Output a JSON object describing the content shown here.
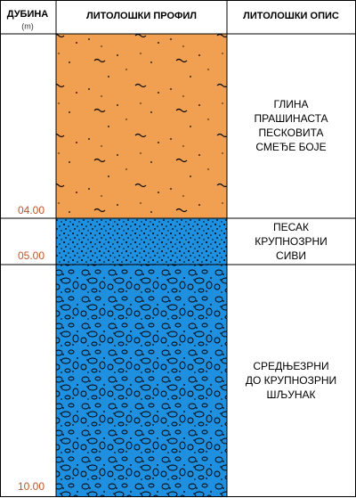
{
  "header": {
    "depth": "ДУБИНА",
    "unit": "(m)",
    "profile": "ЛИТОЛОШКИ ПРОФИЛ",
    "description": "ЛИТОЛОШКИ ОПИС"
  },
  "layers": [
    {
      "depth": "04.00",
      "description": [
        "ГЛИНА",
        "ПРАШИНАСТА",
        "ПЕСКОВИТА",
        "СМЕЂЕ БОЈЕ"
      ]
    },
    {
      "depth": "05.00",
      "description": [
        "ПЕСАК",
        "КРУПНОЗРНИ",
        "СИВИ"
      ]
    },
    {
      "depth": "10.00",
      "description": [
        "СРЕДЊЕЗРНИ",
        "ДО КРУПНОЗРНИ",
        "ШЉУНАК"
      ]
    }
  ]
}
